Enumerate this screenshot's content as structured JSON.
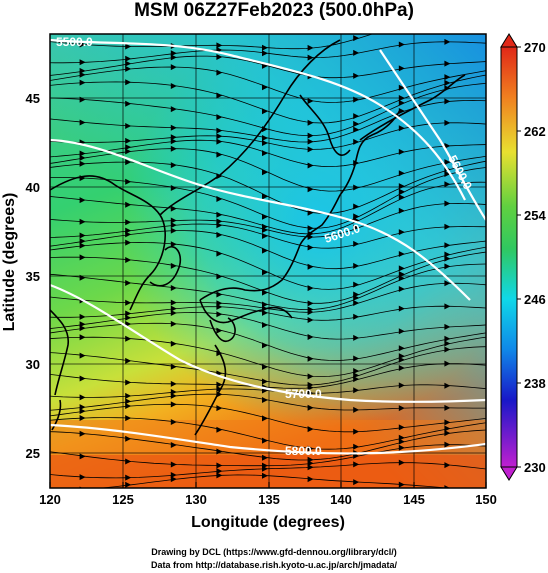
{
  "title": "MSM 06Z27Feb2023 (500.0hPa)",
  "axes": {
    "xlabel": "Longitude (degrees)",
    "ylabel": "Latitude  (degrees)",
    "xticks": [
      "120",
      "125",
      "130",
      "135",
      "140",
      "145",
      "150"
    ],
    "yticks": [
      "25",
      "30",
      "35",
      "40",
      "45"
    ]
  },
  "colorbar": {
    "labels": [
      "270",
      "262",
      "254",
      "246",
      "238",
      "230"
    ],
    "colors": [
      "#e03a18",
      "#f0a020",
      "#c8e030",
      "#30c040",
      "#10d8e0",
      "#1060e0",
      "#2020c0",
      "#c020c0"
    ]
  },
  "contours": {
    "labels": [
      "5500.0",
      "5600.0",
      "5700.0",
      "5800.0",
      "5600.0"
    ]
  },
  "credits": {
    "line1": "Drawing by DCL (https://www.gfd-dennou.org/library/dcl/)",
    "line2": "Data from http://database.rish.kyoto-u.ac.jp/arch/jmadata/"
  }
}
